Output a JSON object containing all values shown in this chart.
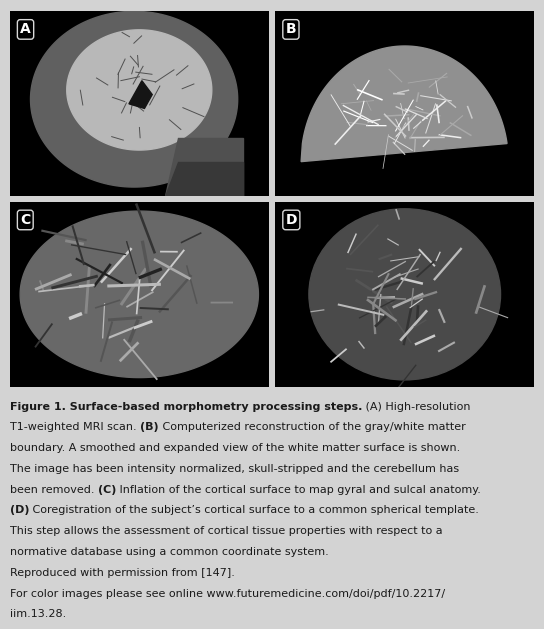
{
  "background_color": "#d3d3d3",
  "panel_bg": "#000000",
  "figure_width": 5.44,
  "figure_height": 6.29,
  "panel_labels": [
    "A",
    "B",
    "C",
    "D"
  ],
  "text_color": "#1a1a1a",
  "font_size_caption": 8.0,
  "caption_lines": [
    [
      [
        "Figure 1. Surface-based morphometry processing steps.",
        true
      ],
      [
        " (A) High-resolution",
        false
      ]
    ],
    [
      [
        "T1-weighted MRI scan. ",
        false
      ],
      [
        "(B)",
        true
      ],
      [
        " Computerized reconstruction of the gray/white matter",
        false
      ]
    ],
    [
      [
        "boundary. A smoothed and expanded view of the white matter surface is shown.",
        false
      ]
    ],
    [
      [
        "The image has been intensity normalized, skull-stripped and the cerebellum has",
        false
      ]
    ],
    [
      [
        "been removed. ",
        false
      ],
      [
        "(C)",
        true
      ],
      [
        " Inflation of the cortical surface to map gyral and sulcal anatomy.",
        false
      ]
    ],
    [
      [
        "(D)",
        true
      ],
      [
        " Coregistration of the subject’s cortical surface to a common spherical template.",
        false
      ]
    ],
    [
      [
        "This step allows the assessment of cortical tissue properties with respect to a",
        false
      ]
    ],
    [
      [
        "normative database using a common coordinate system.",
        false
      ]
    ],
    [
      [
        "Reproduced with permission from [147].",
        false
      ]
    ],
    [
      [
        "For color images please see online www.futuremedicine.com/doi/pdf/10.2217/",
        false
      ]
    ],
    [
      [
        "iim.13.28.",
        false
      ]
    ]
  ]
}
